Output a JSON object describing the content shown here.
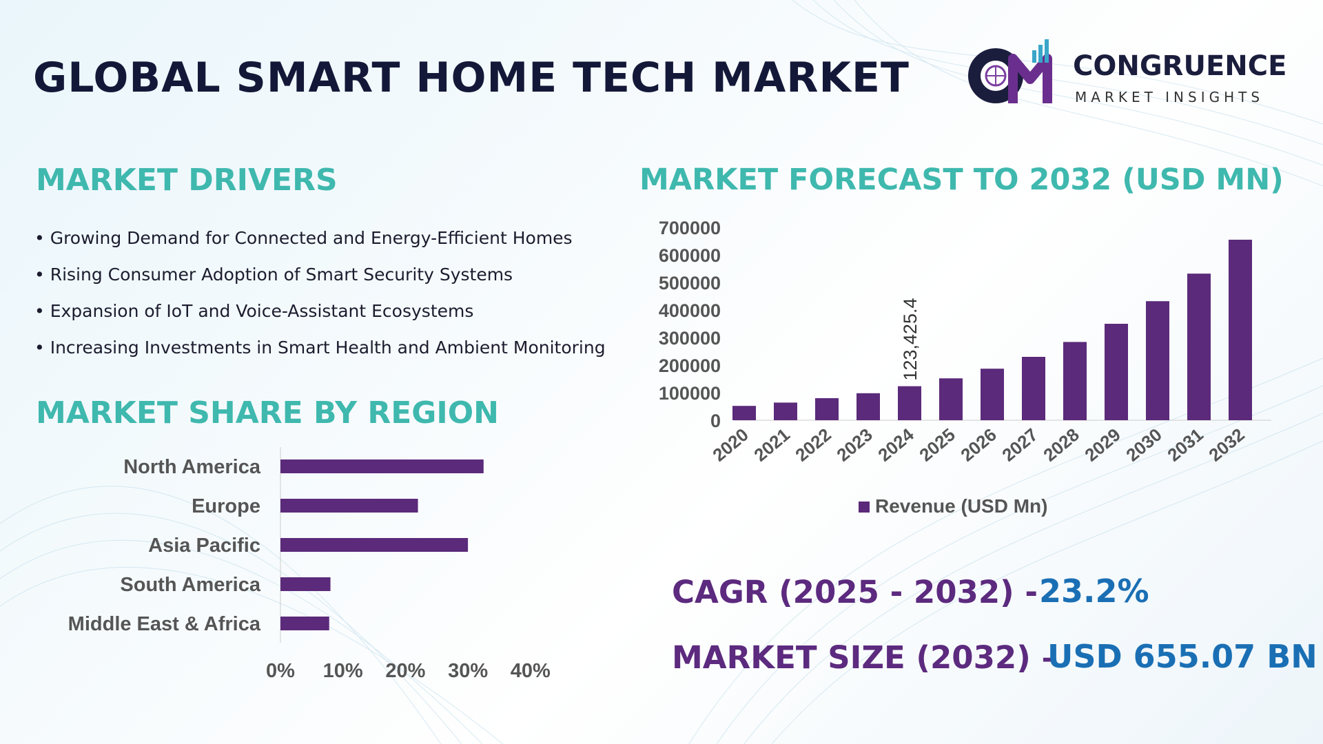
{
  "title": "GLOBAL SMART HOME TECH MARKET",
  "logo": {
    "name": "CONGRUENCE",
    "tagline": "MARKET INSIGHTS",
    "monogram": "CM"
  },
  "drivers": {
    "heading": "MARKET DRIVERS",
    "items": [
      "Growing Demand for Connected and Energy-Efficient Homes",
      "Rising Consumer Adoption of Smart Security Systems",
      "Expansion of IoT and Voice-Assistant Ecosystems",
      "Increasing Investments in Smart Health and Ambient Monitoring"
    ]
  },
  "region_heading": "MARKET SHARE BY REGION",
  "forecast_heading": "MARKET FORECAST TO 2032 (USD MN)",
  "kpis": {
    "cagr_label": "CAGR (2025 - 2032) -",
    "cagr_value": "23.2%",
    "size_label": "MARKET SIZE (2032) –",
    "size_value": "USD 655.07 BN"
  },
  "colors": {
    "bar": "#5b2a7a",
    "heading": "#3fb8ae",
    "title": "#141838",
    "kpi_label": "#5c2a7e",
    "kpi_value": "#1a6fb4"
  },
  "chart_data": [
    {
      "type": "bar",
      "orientation": "vertical",
      "title": "MARKET FORECAST TO 2032 (USD MN)",
      "categories": [
        "2020",
        "2021",
        "2022",
        "2023",
        "2024",
        "2025",
        "2026",
        "2027",
        "2028",
        "2029",
        "2030",
        "2031",
        "2032"
      ],
      "series": [
        {
          "name": "Revenue (USD Mn)",
          "values": [
            52000,
            64000,
            80000,
            98000,
            123425.4,
            152000,
            187000,
            230000,
            284000,
            350000,
            432000,
            532000,
            655070
          ]
        }
      ],
      "ylim": [
        0,
        700000
      ],
      "yticks": [
        "0",
        "100000",
        "200000",
        "300000",
        "400000",
        "500000",
        "600000",
        "700000"
      ],
      "data_labels": [
        {
          "category": "2024",
          "text": "123,425.4"
        }
      ],
      "legend": "bottom",
      "grid": false
    },
    {
      "type": "bar",
      "orientation": "horizontal",
      "title": "MARKET SHARE BY REGION",
      "categories": [
        "North America",
        "Europe",
        "Asia Pacific",
        "South America",
        "Middle East & Africa"
      ],
      "values": [
        32.5,
        22,
        30,
        8,
        7.8
      ],
      "xlim": [
        0,
        40
      ],
      "xticks": [
        "0%",
        "10%",
        "20%",
        "30%",
        "40%"
      ],
      "grid": false
    }
  ]
}
